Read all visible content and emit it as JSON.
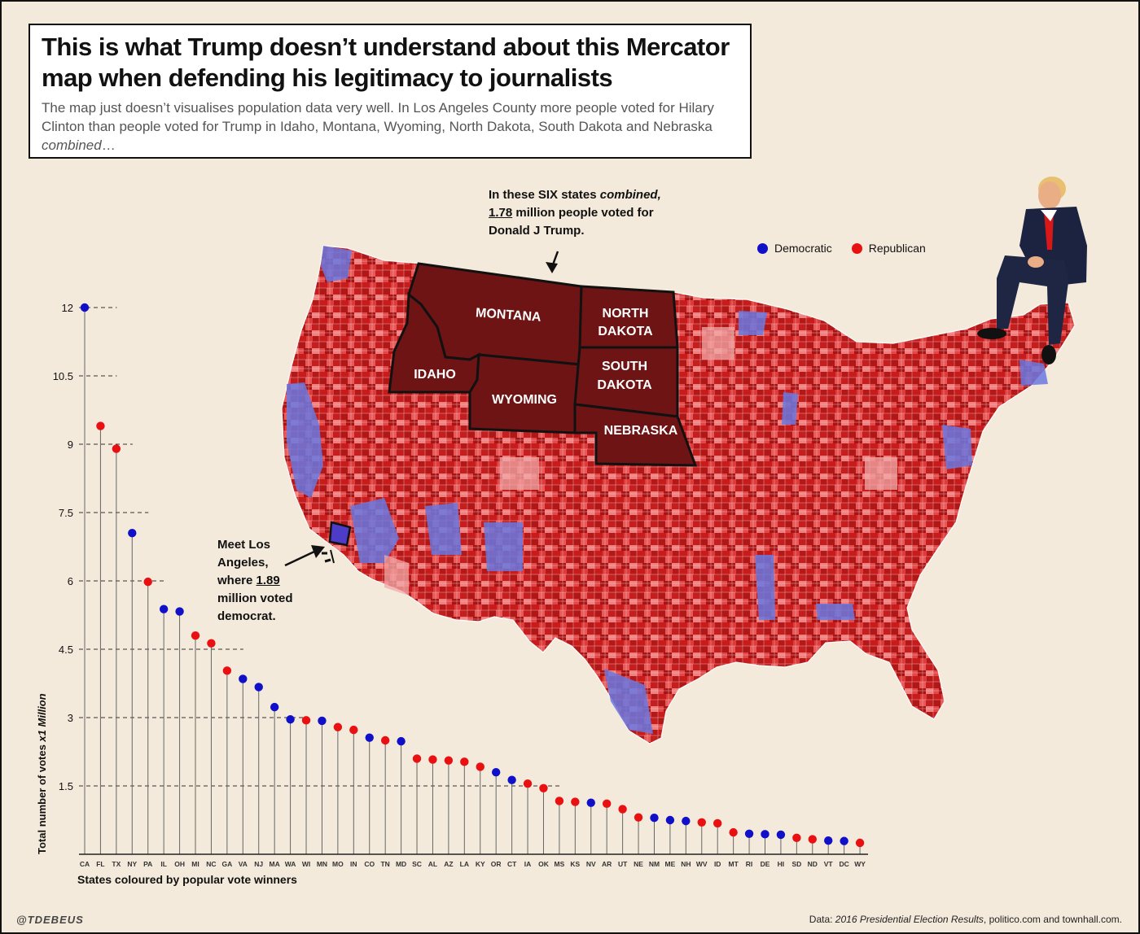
{
  "header": {
    "title": "This is what Trump doesn’t understand about this Mercator map when defending his legitimacy to journalists",
    "subtitle_main": "The map just doesn’t visualises population data very well. In Los Angeles County more people voted for Hilary Clinton than people voted for Trump in Idaho, Montana, Wyoming, North Dakota, South Dakota and Nebraska ",
    "subtitle_emph": "combined",
    "subtitle_end": "…"
  },
  "annotations": {
    "six_states_1": "In these SIX states ",
    "six_states_emph": "combined,",
    "six_states_value": "1.78",
    "six_states_2": " million people voted for",
    "six_states_3": "Donald J Trump.",
    "la_1": "Meet Los",
    "la_2": "Angeles,",
    "la_3": "where ",
    "la_value": "1.89",
    "la_4": "million voted",
    "la_5": "democrat."
  },
  "map_labels": {
    "montana": "MONTANA",
    "idaho": "IDAHO",
    "wyoming": "WYOMING",
    "north_dakota_1": "NORTH",
    "north_dakota_2": "DAKOTA",
    "south_dakota_1": "SOUTH",
    "south_dakota_2": "DAKOTA",
    "nebraska": "NEBRASKA"
  },
  "legend": {
    "democratic": "Democratic",
    "republican": "Republican"
  },
  "colors": {
    "democratic": "#1010c8",
    "republican": "#e81010",
    "background": "#f4eadb",
    "highlight_states": "#6e1414"
  },
  "chart_data": {
    "type": "lollipop",
    "ylabel_main": "Total number of votes ",
    "ylabel_emph": "x1 Million",
    "xlabel": "States coloured by popular vote winners",
    "y_ticks": [
      1.5,
      3,
      4.5,
      6,
      7.5,
      9,
      10.5,
      12
    ],
    "y_tick_labels": [
      "1.5",
      "3",
      "4.5",
      "6",
      "7.5",
      "9",
      "10.5",
      "12"
    ],
    "ylim": [
      0,
      12
    ],
    "points": [
      {
        "state": "CA",
        "value": 12.0,
        "winner": "D"
      },
      {
        "state": "FL",
        "value": 9.4,
        "winner": "R"
      },
      {
        "state": "TX",
        "value": 8.9,
        "winner": "R"
      },
      {
        "state": "NY",
        "value": 7.05,
        "winner": "D"
      },
      {
        "state": "PA",
        "value": 5.98,
        "winner": "R"
      },
      {
        "state": "IL",
        "value": 5.38,
        "winner": "D"
      },
      {
        "state": "OH",
        "value": 5.33,
        "winner": "D"
      },
      {
        "state": "MI",
        "value": 4.8,
        "winner": "R"
      },
      {
        "state": "NC",
        "value": 4.63,
        "winner": "R"
      },
      {
        "state": "GA",
        "value": 4.03,
        "winner": "R"
      },
      {
        "state": "VA",
        "value": 3.85,
        "winner": "D"
      },
      {
        "state": "NJ",
        "value": 3.67,
        "winner": "D"
      },
      {
        "state": "MA",
        "value": 3.23,
        "winner": "D"
      },
      {
        "state": "WA",
        "value": 2.96,
        "winner": "D"
      },
      {
        "state": "WI",
        "value": 2.94,
        "winner": "R"
      },
      {
        "state": "MN",
        "value": 2.93,
        "winner": "D"
      },
      {
        "state": "MO",
        "value": 2.79,
        "winner": "R"
      },
      {
        "state": "IN",
        "value": 2.73,
        "winner": "R"
      },
      {
        "state": "CO",
        "value": 2.56,
        "winner": "D"
      },
      {
        "state": "TN",
        "value": 2.5,
        "winner": "R"
      },
      {
        "state": "MD",
        "value": 2.48,
        "winner": "D"
      },
      {
        "state": "SC",
        "value": 2.1,
        "winner": "R"
      },
      {
        "state": "AL",
        "value": 2.08,
        "winner": "R"
      },
      {
        "state": "AZ",
        "value": 2.06,
        "winner": "R"
      },
      {
        "state": "LA",
        "value": 2.03,
        "winner": "R"
      },
      {
        "state": "KY",
        "value": 1.92,
        "winner": "R"
      },
      {
        "state": "OR",
        "value": 1.8,
        "winner": "D"
      },
      {
        "state": "CT",
        "value": 1.63,
        "winner": "D"
      },
      {
        "state": "IA",
        "value": 1.55,
        "winner": "R"
      },
      {
        "state": "OK",
        "value": 1.45,
        "winner": "R"
      },
      {
        "state": "MS",
        "value": 1.17,
        "winner": "R"
      },
      {
        "state": "KS",
        "value": 1.15,
        "winner": "R"
      },
      {
        "state": "NV",
        "value": 1.13,
        "winner": "D"
      },
      {
        "state": "AR",
        "value": 1.11,
        "winner": "R"
      },
      {
        "state": "UT",
        "value": 0.99,
        "winner": "R"
      },
      {
        "state": "NE",
        "value": 0.81,
        "winner": "R"
      },
      {
        "state": "NM",
        "value": 0.8,
        "winner": "D"
      },
      {
        "state": "ME",
        "value": 0.75,
        "winner": "D"
      },
      {
        "state": "NH",
        "value": 0.73,
        "winner": "D"
      },
      {
        "state": "WV",
        "value": 0.7,
        "winner": "R"
      },
      {
        "state": "ID",
        "value": 0.68,
        "winner": "R"
      },
      {
        "state": "MT",
        "value": 0.48,
        "winner": "R"
      },
      {
        "state": "RI",
        "value": 0.45,
        "winner": "D"
      },
      {
        "state": "DE",
        "value": 0.44,
        "winner": "D"
      },
      {
        "state": "HI",
        "value": 0.43,
        "winner": "D"
      },
      {
        "state": "SD",
        "value": 0.36,
        "winner": "R"
      },
      {
        "state": "ND",
        "value": 0.33,
        "winner": "R"
      },
      {
        "state": "VT",
        "value": 0.3,
        "winner": "D"
      },
      {
        "state": "DC",
        "value": 0.29,
        "winner": "D"
      },
      {
        "state": "WY",
        "value": 0.25,
        "winner": "R"
      }
    ]
  },
  "footer": {
    "credit": "@TDEBEUS",
    "source_prefix": "Data: ",
    "source_title": "2016 Presidential Election Results",
    "source_suffix": ", politico.com and townhall.com."
  }
}
